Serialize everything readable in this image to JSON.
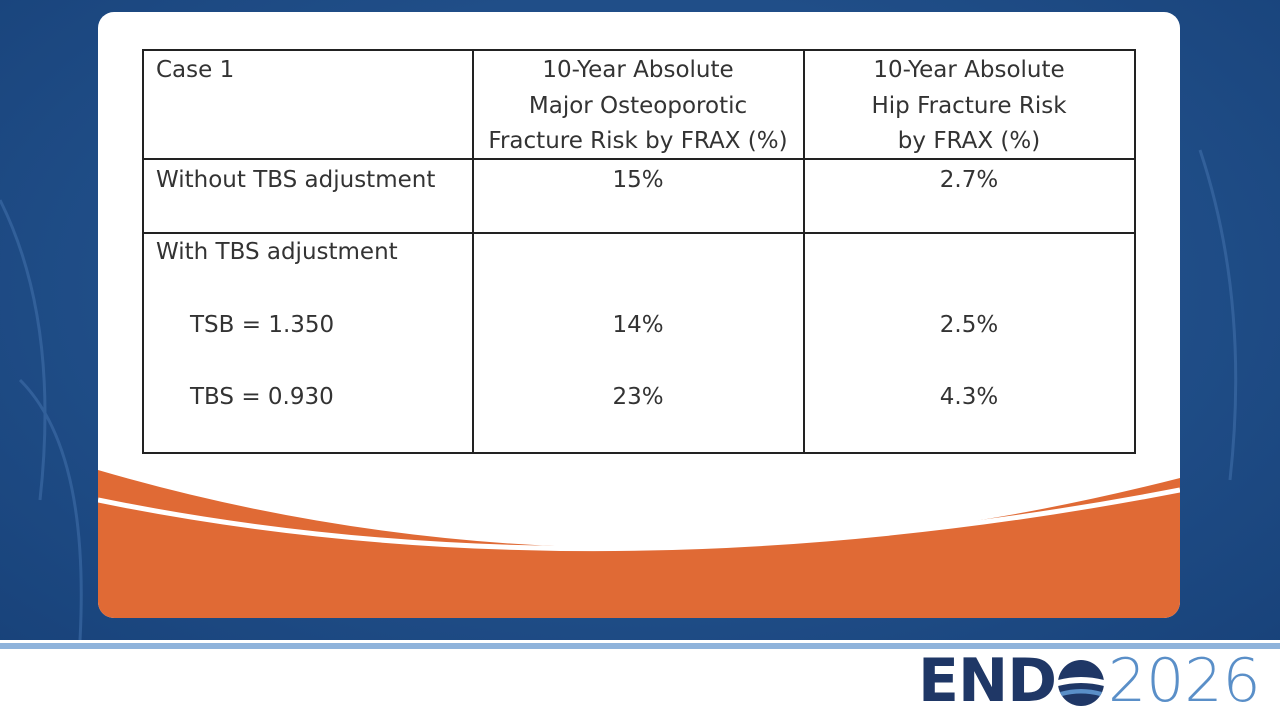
{
  "table": {
    "header": [
      [
        "Case 1"
      ],
      [
        "10-Year Absolute",
        "Major Osteoporotic",
        "Fracture Risk by FRAX (%)"
      ],
      [
        "10-Year Absolute",
        "Hip Fracture Risk",
        "by FRAX (%)"
      ]
    ],
    "rows": [
      [
        "Without TBS adjustment",
        "15%",
        "2.7%"
      ],
      [
        "With TBS adjustment",
        "",
        ""
      ]
    ],
    "subrows": [
      [
        "TSB = 1.350",
        "14%",
        "2.5%"
      ],
      [
        "TBS = 0.930",
        "23%",
        "4.3%"
      ]
    ]
  },
  "logo": {
    "left": "END",
    "right": "2026"
  }
}
